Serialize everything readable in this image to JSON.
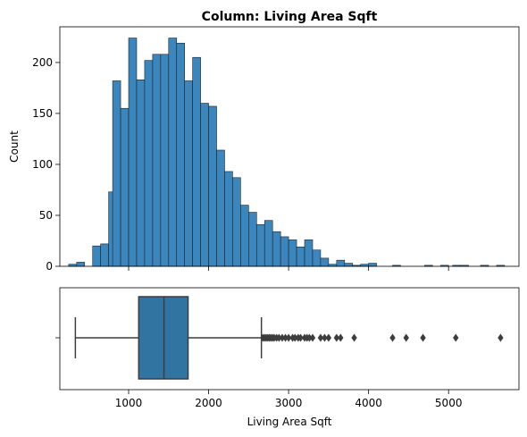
{
  "chart_data": {
    "title": "Column: Living Area Sqft",
    "ylabel": "Count",
    "xlabel": "Living Area Sqft",
    "colors": {
      "bar": "#3a86bd",
      "box": "#3274a1",
      "edge": "#222222"
    },
    "histogram": {
      "type": "bar",
      "bin_width": 100,
      "bins": [
        [
          300,
          2
        ],
        [
          400,
          4
        ],
        [
          500,
          0
        ],
        [
          600,
          20
        ],
        [
          700,
          22
        ],
        [
          800,
          73
        ],
        [
          850,
          182
        ],
        [
          950,
          155
        ],
        [
          1050,
          224
        ],
        [
          1150,
          183
        ],
        [
          1250,
          202
        ],
        [
          1350,
          208
        ],
        [
          1450,
          208
        ],
        [
          1550,
          224
        ],
        [
          1650,
          219
        ],
        [
          1750,
          182
        ],
        [
          1850,
          205
        ],
        [
          1950,
          160
        ],
        [
          2050,
          157
        ],
        [
          2150,
          114
        ],
        [
          2250,
          93
        ],
        [
          2350,
          87
        ],
        [
          2450,
          60
        ],
        [
          2550,
          53
        ],
        [
          2650,
          41
        ],
        [
          2750,
          45
        ],
        [
          2850,
          34
        ],
        [
          2950,
          29
        ],
        [
          3050,
          26
        ],
        [
          3150,
          19
        ],
        [
          3250,
          26
        ],
        [
          3350,
          16
        ],
        [
          3450,
          8
        ],
        [
          3550,
          2
        ],
        [
          3650,
          6
        ],
        [
          3750,
          3
        ],
        [
          3850,
          1
        ],
        [
          3950,
          2
        ],
        [
          4050,
          3
        ],
        [
          4150,
          0
        ],
        [
          4350,
          1
        ],
        [
          4750,
          1
        ],
        [
          4950,
          1
        ],
        [
          5100,
          1
        ],
        [
          5200,
          1
        ],
        [
          5450,
          1
        ],
        [
          5650,
          1
        ]
      ],
      "ylim": [
        0,
        235
      ],
      "yticks": [
        "0",
        "50",
        "100",
        "150",
        "200"
      ],
      "ytick_values": [
        0,
        50,
        100,
        150,
        200
      ]
    },
    "boxplot": {
      "type": "box",
      "whisker_low": 334,
      "q1": 1126,
      "median": 1442,
      "q3": 1743,
      "whisker_high": 2660,
      "outliers": [
        2680,
        2700,
        2720,
        2740,
        2760,
        2780,
        2800,
        2820,
        2850,
        2880,
        2920,
        2960,
        3000,
        3050,
        3080,
        3120,
        3150,
        3200,
        3230,
        3260,
        3300,
        3400,
        3450,
        3500,
        3600,
        3650,
        3820,
        4300,
        4470,
        4680,
        5090,
        5650
      ]
    },
    "xlim": [
      140,
      5880
    ],
    "xticks": [
      "1000",
      "2000",
      "3000",
      "4000",
      "5000"
    ],
    "xtick_values": [
      1000,
      2000,
      3000,
      4000,
      5000
    ]
  }
}
